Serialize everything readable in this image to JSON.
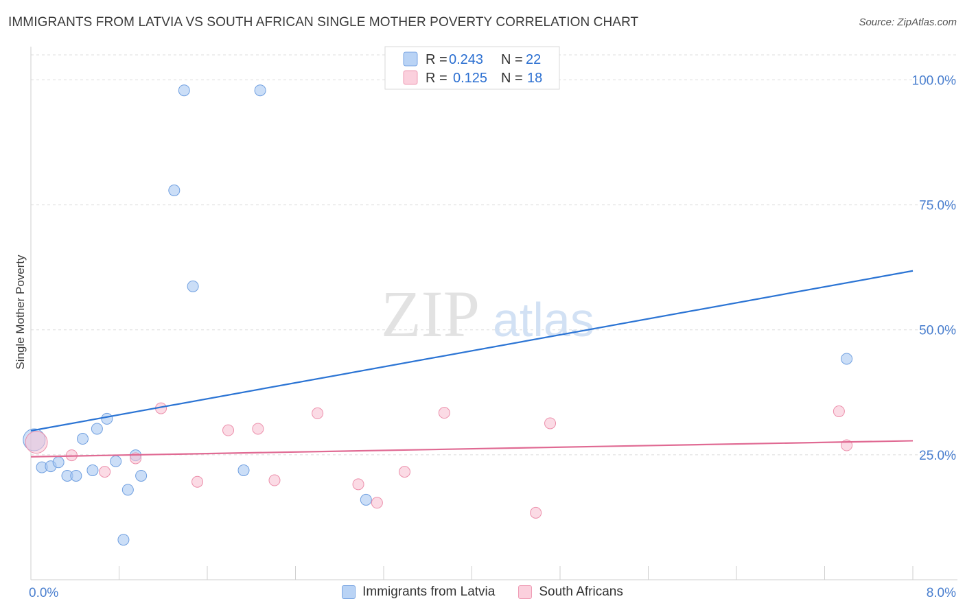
{
  "title": "IMMIGRANTS FROM LATVIA VS SOUTH AFRICAN SINGLE MOTHER POVERTY CORRELATION CHART",
  "source": "Source: ZipAtlas.com",
  "watermark": {
    "zip": "ZIP",
    "atlas": "atlas"
  },
  "chart_data": {
    "type": "scatter",
    "title": "IMMIGRANTS FROM LATVIA VS SOUTH AFRICAN SINGLE MOTHER POVERTY CORRELATION CHART",
    "xlabel": "",
    "ylabel": "Single Mother Poverty",
    "xlim": [
      0,
      8
    ],
    "ylim": [
      0,
      105
    ],
    "x_tick_labels": [
      "0.0%",
      "8.0%"
    ],
    "y_ticks": [
      25,
      50,
      75,
      100
    ],
    "y_tick_labels": [
      "25.0%",
      "50.0%",
      "75.0%",
      "100.0%"
    ],
    "grid": true,
    "legend": {
      "placement": "top-center",
      "entries": [
        {
          "r_label": "R =",
          "r_value": "0.243",
          "n_label": "N =",
          "n_value": "22"
        },
        {
          "r_label": "R =",
          "r_value": "0.125",
          "n_label": "N =",
          "n_value": "18"
        }
      ]
    },
    "series": [
      {
        "name": "Immigrants from Latvia",
        "color": "#a9c8f2",
        "edge": "#6f9fe0",
        "line_color": "#2b74d4",
        "trend": {
          "x": [
            0,
            8
          ],
          "y": [
            29.8,
            61.8
          ]
        },
        "points": [
          {
            "x": 0.03,
            "y": 28.0,
            "big": true
          },
          {
            "x": 0.1,
            "y": 22.5
          },
          {
            "x": 0.18,
            "y": 22.7
          },
          {
            "x": 0.25,
            "y": 23.5
          },
          {
            "x": 0.33,
            "y": 20.8
          },
          {
            "x": 0.41,
            "y": 20.8
          },
          {
            "x": 0.47,
            "y": 28.2
          },
          {
            "x": 0.56,
            "y": 21.9
          },
          {
            "x": 0.6,
            "y": 30.2
          },
          {
            "x": 0.69,
            "y": 32.2
          },
          {
            "x": 0.77,
            "y": 23.7
          },
          {
            "x": 0.84,
            "y": 8.0
          },
          {
            "x": 0.88,
            "y": 18.0
          },
          {
            "x": 0.95,
            "y": 24.9
          },
          {
            "x": 1.0,
            "y": 20.8
          },
          {
            "x": 1.3,
            "y": 77.9
          },
          {
            "x": 1.39,
            "y": 97.9
          },
          {
            "x": 1.47,
            "y": 58.7
          },
          {
            "x": 1.93,
            "y": 21.9
          },
          {
            "x": 2.08,
            "y": 97.9
          },
          {
            "x": 3.04,
            "y": 16.0
          },
          {
            "x": 7.4,
            "y": 44.2
          }
        ]
      },
      {
        "name": "South Africans",
        "color": "#f8c3d3",
        "edge": "#ec8fab",
        "line_color": "#e06a93",
        "trend": {
          "x": [
            0,
            8
          ],
          "y": [
            24.6,
            27.8
          ]
        },
        "points": [
          {
            "x": 0.05,
            "y": 27.5,
            "big": true
          },
          {
            "x": 0.37,
            "y": 24.9
          },
          {
            "x": 0.67,
            "y": 21.6
          },
          {
            "x": 0.95,
            "y": 24.3
          },
          {
            "x": 1.18,
            "y": 34.3
          },
          {
            "x": 1.51,
            "y": 19.6
          },
          {
            "x": 1.79,
            "y": 29.9
          },
          {
            "x": 2.06,
            "y": 30.2
          },
          {
            "x": 2.21,
            "y": 19.9
          },
          {
            "x": 2.6,
            "y": 33.3
          },
          {
            "x": 2.97,
            "y": 19.1
          },
          {
            "x": 3.14,
            "y": 15.4
          },
          {
            "x": 3.39,
            "y": 21.6
          },
          {
            "x": 3.75,
            "y": 33.4
          },
          {
            "x": 4.58,
            "y": 13.4
          },
          {
            "x": 4.71,
            "y": 31.3
          },
          {
            "x": 7.33,
            "y": 33.7
          },
          {
            "x": 7.4,
            "y": 26.9
          }
        ]
      }
    ]
  }
}
